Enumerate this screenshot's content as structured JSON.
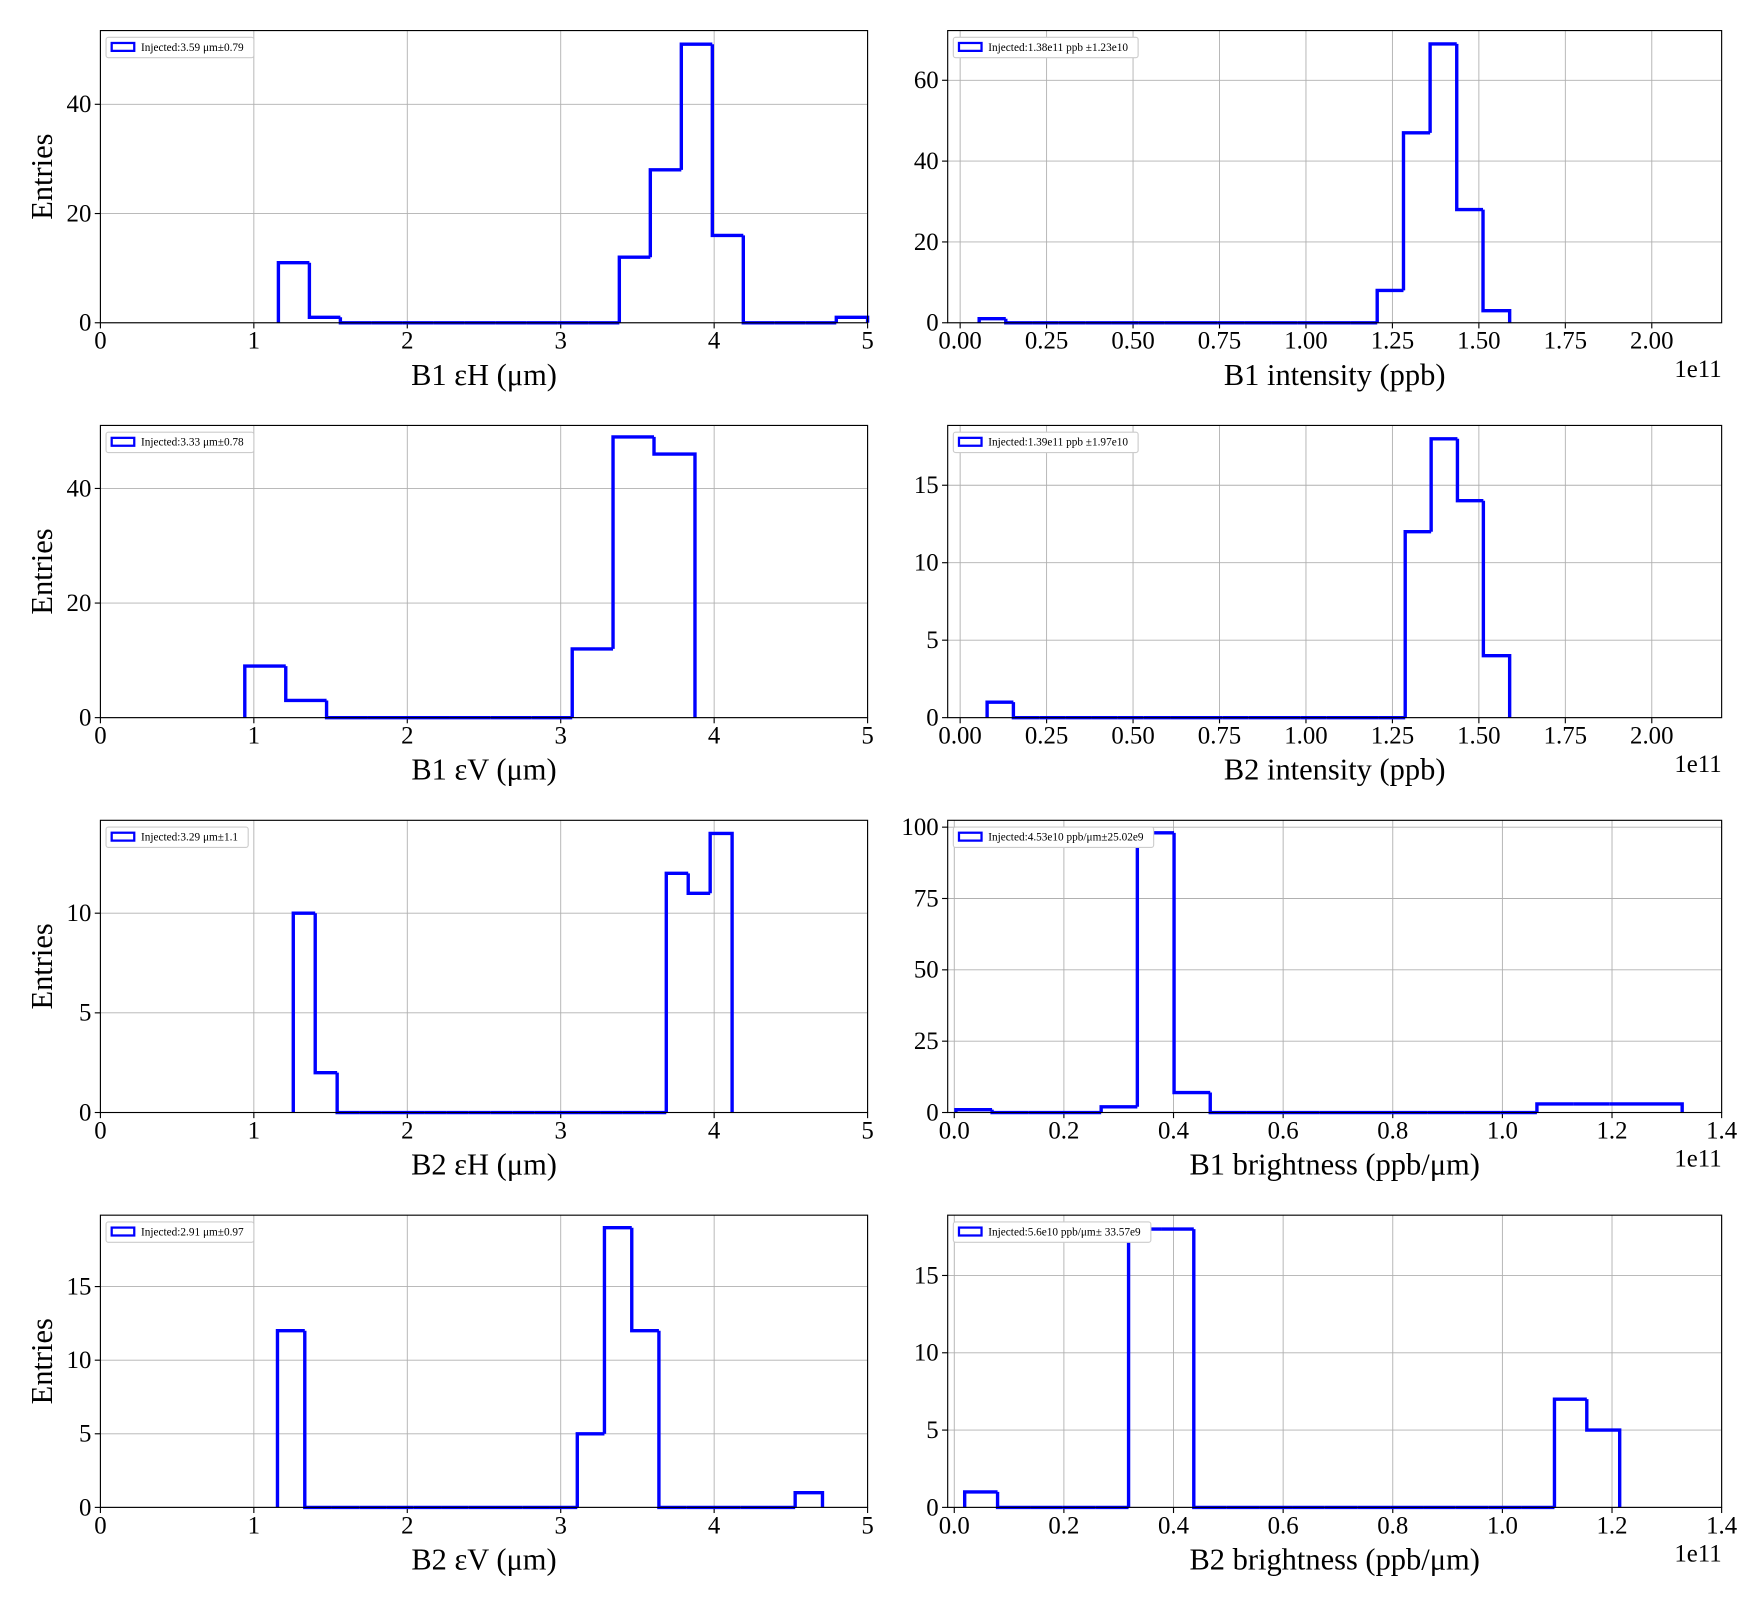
{
  "chart_data": [
    {
      "type": "histogram",
      "xlabel": "B1 εH (μm)",
      "ylabel": "Entries",
      "bins": [
        1.16,
        1.362,
        1.564,
        1.766,
        1.968,
        2.17,
        2.372,
        2.574,
        2.776,
        2.978,
        3.18,
        3.382,
        3.584,
        3.786,
        3.988,
        4.19,
        4.392,
        4.594,
        4.796,
        5.0
      ],
      "series": [
        {
          "name": "Injected:3.59 μm±0.79",
          "color": "#0000ff",
          "values": [
            11,
            1,
            0,
            0,
            0,
            0,
            0,
            0,
            0,
            0,
            0,
            12,
            28,
            51,
            16,
            0,
            0,
            0,
            1
          ]
        }
      ],
      "xlim": [
        0,
        5
      ],
      "ylim": [
        0,
        53.5
      ],
      "xticks": [
        0,
        1,
        2,
        3,
        4,
        5
      ],
      "yticks": [
        0,
        20,
        40
      ],
      "grid": true,
      "legend": "upper left"
    },
    {
      "type": "histogram",
      "xlabel": "B1 intensity (ppb)",
      "x_offset_label": "1e11",
      "bins": [
        0.055,
        0.132,
        0.208,
        0.285,
        0.362,
        0.439,
        0.515,
        0.592,
        0.669,
        0.745,
        0.822,
        0.899,
        0.975,
        1.052,
        1.129,
        1.206,
        1.282,
        1.359,
        1.436,
        1.512,
        1.589
      ],
      "series": [
        {
          "name": "Injected:1.38e11 ppb ±1.23e10",
          "color": "#0000ff",
          "values": [
            1,
            0,
            0,
            0,
            0,
            0,
            0,
            0,
            0,
            0,
            0,
            0,
            0,
            0,
            0,
            8,
            47,
            69,
            28,
            3
          ]
        }
      ],
      "xlim": [
        -0.036,
        2.202
      ],
      "ylim": [
        0,
        72.3
      ],
      "xticks": [
        {
          "value": 0,
          "label": "0.00"
        },
        0.25,
        {
          "value": 0.5,
          "label": "0.50"
        },
        0.75,
        {
          "value": 1,
          "label": "1.00"
        },
        1.25,
        {
          "value": 1.5,
          "label": "1.50"
        },
        1.75,
        {
          "value": 2,
          "label": "2.00"
        }
      ],
      "yticks": [
        0,
        20,
        40,
        60
      ],
      "grid": true,
      "legend": "upper left"
    },
    {
      "type": "histogram",
      "xlabel": "B1 εV (μm)",
      "ylabel": "Entries",
      "bins": [
        0.941,
        1.208,
        1.474,
        1.741,
        2.008,
        2.275,
        2.541,
        2.808,
        3.075,
        3.341,
        3.608,
        3.875
      ],
      "series": [
        {
          "name": "Injected:3.33 μm±0.78",
          "color": "#0000ff",
          "values": [
            9,
            3,
            0,
            0,
            0,
            0,
            0,
            0,
            12,
            49,
            46
          ]
        }
      ],
      "xlim": [
        0,
        5
      ],
      "ylim": [
        0,
        51
      ],
      "xticks": [
        0,
        1,
        2,
        3,
        4,
        5
      ],
      "yticks": [
        0,
        20,
        40
      ],
      "grid": true,
      "legend": "upper left"
    },
    {
      "type": "histogram",
      "xlabel": "B2 intensity (ppb)",
      "x_offset_label": "1e11",
      "bins": [
        0.078,
        0.154,
        0.229,
        0.305,
        0.38,
        0.456,
        0.531,
        0.607,
        0.682,
        0.758,
        0.833,
        0.909,
        0.985,
        1.06,
        1.136,
        1.211,
        1.287,
        1.362,
        1.438,
        1.513,
        1.589
      ],
      "series": [
        {
          "name": "Injected:1.39e11 ppb ±1.97e10",
          "color": "#0000ff",
          "values": [
            1,
            0,
            0,
            0,
            0,
            0,
            0,
            0,
            0,
            0,
            0,
            0,
            0,
            0,
            0,
            0,
            12,
            18,
            14,
            4
          ]
        }
      ],
      "xlim": [
        -0.036,
        2.202
      ],
      "ylim": [
        0,
        18.86
      ],
      "xticks": [
        {
          "value": 0,
          "label": "0.00"
        },
        0.25,
        {
          "value": 0.5,
          "label": "0.50"
        },
        0.75,
        {
          "value": 1,
          "label": "1.00"
        },
        1.25,
        {
          "value": 1.5,
          "label": "1.50"
        },
        1.75,
        {
          "value": 2,
          "label": "2.00"
        }
      ],
      "yticks": [
        0,
        5,
        10,
        15
      ],
      "grid": true,
      "legend": "upper left"
    },
    {
      "type": "histogram",
      "xlabel": "B2 εH (μm)",
      "ylabel": "Entries",
      "bins": [
        1.257,
        1.4,
        1.543,
        1.686,
        1.829,
        1.972,
        2.115,
        2.258,
        2.401,
        2.544,
        2.687,
        2.83,
        2.973,
        3.116,
        3.259,
        3.402,
        3.545,
        3.688,
        3.831,
        3.974,
        4.117
      ],
      "series": [
        {
          "name": "Injected:3.29 μm±1.1",
          "color": "#0000ff",
          "values": [
            10,
            2,
            0,
            0,
            0,
            0,
            0,
            0,
            0,
            0,
            0,
            0,
            0,
            0,
            0,
            0,
            0,
            12,
            11,
            14
          ]
        }
      ],
      "xlim": [
        0,
        5
      ],
      "ylim": [
        0,
        14.66
      ],
      "xticks": [
        0,
        1,
        2,
        3,
        4,
        5
      ],
      "yticks": [
        0,
        5,
        10
      ],
      "grid": true,
      "legend": "upper left"
    },
    {
      "type": "histogram",
      "xlabel": "B1 brightness (ppb/μm)",
      "x_offset_label": "1e11",
      "bins": [
        0.003,
        0.069,
        0.136,
        0.202,
        0.268,
        0.334,
        0.401,
        0.467,
        0.533,
        0.599,
        0.666,
        0.732,
        0.798,
        0.864,
        0.931,
        0.997,
        1.063,
        1.129,
        1.196,
        1.262,
        1.328
      ],
      "series": [
        {
          "name": "Injected:4.53e10 ppb/μm±25.02e9",
          "color": "#0000ff",
          "values": [
            1,
            0,
            0,
            0,
            2,
            98,
            7,
            0,
            0,
            0,
            0,
            0,
            0,
            0,
            0,
            0,
            3,
            3,
            3,
            3
          ]
        }
      ],
      "xlim": [
        -0.012,
        1.4
      ],
      "ylim": [
        0,
        102.4
      ],
      "xticks": [
        {
          "value": 0,
          "label": "0.0"
        },
        0.2,
        0.4,
        0.6,
        0.8,
        {
          "value": 1,
          "label": "1.0"
        },
        1.2,
        1.4
      ],
      "yticks": [
        0,
        25,
        50,
        75,
        100
      ],
      "grid": true,
      "legend": "upper left"
    },
    {
      "type": "histogram",
      "xlabel": "B2 εV (μm)",
      "ylabel": "Entries",
      "bins": [
        1.154,
        1.332,
        1.509,
        1.687,
        1.864,
        2.042,
        2.22,
        2.397,
        2.575,
        2.752,
        2.93,
        3.108,
        3.285,
        3.463,
        3.64,
        3.818,
        3.996,
        4.173,
        4.351,
        4.528,
        4.706
      ],
      "series": [
        {
          "name": "Injected:2.91 μm±0.97",
          "color": "#0000ff",
          "values": [
            12,
            0,
            0,
            0,
            0,
            0,
            0,
            0,
            0,
            0,
            0,
            5,
            19,
            12,
            0,
            0,
            0,
            0,
            0,
            1
          ]
        }
      ],
      "xlim": [
        0,
        5
      ],
      "ylim": [
        0,
        19.85
      ],
      "xticks": [
        0,
        1,
        2,
        3,
        4,
        5
      ],
      "yticks": [
        0,
        5,
        10,
        15
      ],
      "grid": true,
      "legend": "upper left"
    },
    {
      "type": "histogram",
      "xlabel": "B2 brightness (ppb/μm)",
      "x_offset_label": "1e11",
      "bins": [
        0.019,
        0.079,
        0.139,
        0.198,
        0.258,
        0.318,
        0.378,
        0.437,
        0.497,
        0.557,
        0.617,
        0.676,
        0.736,
        0.796,
        0.856,
        0.915,
        0.975,
        1.035,
        1.095,
        1.154,
        1.214
      ],
      "series": [
        {
          "name": "Injected:5.6e10 ppb/μm± 33.57e9",
          "color": "#0000ff",
          "values": [
            1,
            0,
            0,
            0,
            0,
            18,
            18,
            0,
            0,
            0,
            0,
            0,
            0,
            0,
            0,
            0,
            0,
            0,
            7,
            5
          ]
        }
      ],
      "xlim": [
        -0.012,
        1.4
      ],
      "ylim": [
        0,
        18.9
      ],
      "xticks": [
        {
          "value": 0,
          "label": "0.0"
        },
        0.2,
        0.4,
        0.6,
        0.8,
        {
          "value": 1,
          "label": "1.0"
        },
        1.2,
        1.4
      ],
      "yticks": [
        0,
        5,
        10,
        15
      ],
      "grid": true,
      "legend": "upper left"
    }
  ]
}
